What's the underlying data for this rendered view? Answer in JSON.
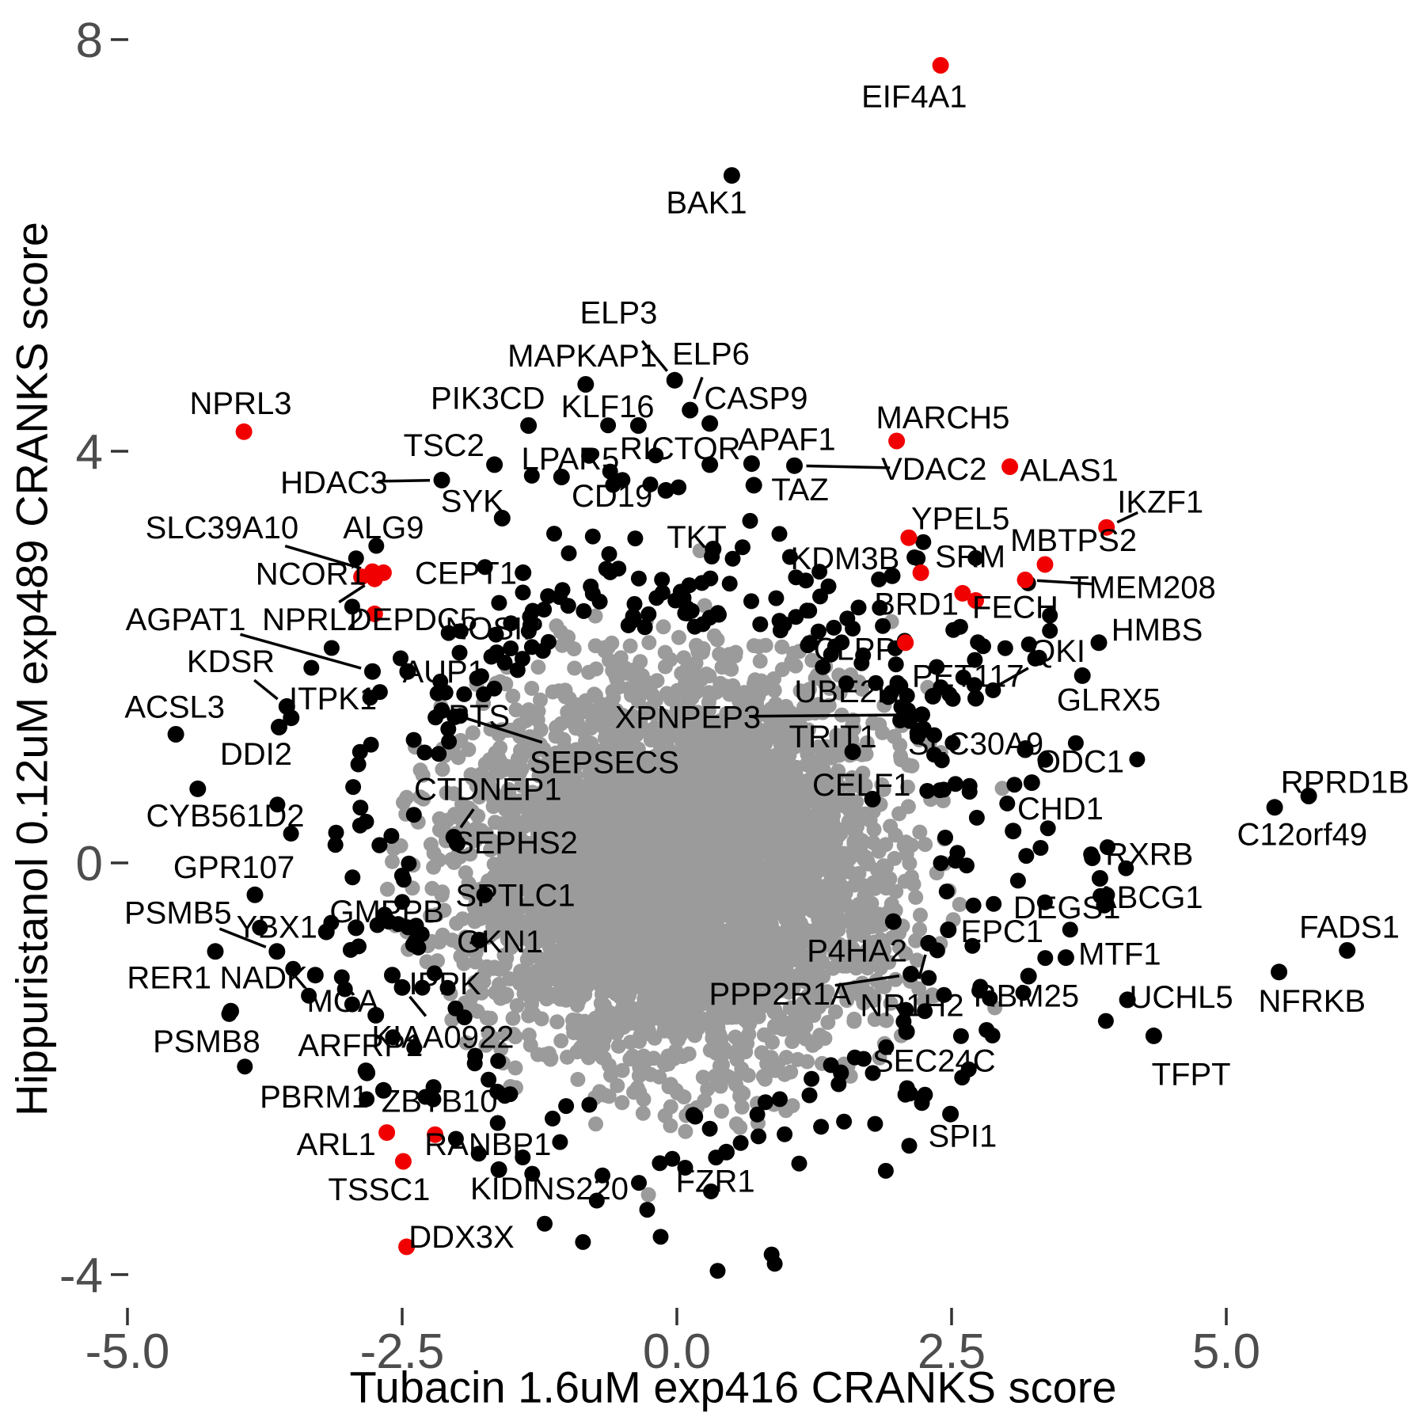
{
  "chart_data": {
    "type": "scatter",
    "title": "",
    "xlabel": "Tubacin 1.6uM exp416 CRANKS score",
    "ylabel": "Hippuristanol 0.12uM exp489 CRANKS score",
    "xlim": [
      -5.5,
      6.6
    ],
    "ylim": [
      -4.35,
      8.35
    ],
    "grid": false,
    "legend": "none",
    "x_ticks": [
      -5.0,
      -2.5,
      0.0,
      2.5,
      5.0
    ],
    "x_tick_labels": [
      "-5.0",
      "-2.5",
      "0.0",
      "2.5",
      "5.0"
    ],
    "y_ticks": [
      8,
      4,
      0,
      -4
    ],
    "y_tick_labels": [
      "8",
      "4",
      "0",
      "-4"
    ],
    "colors": {
      "highlight_point": "#F00000",
      "labeled_point": "#000000",
      "background_cloud": "#9B9B9B",
      "tick_text": "#4D4D4D",
      "label_text": "#000000"
    },
    "background_cloud": {
      "description": "dense unlabeled gray point cloud of all screened genes",
      "n": 4600,
      "cx": 0.0,
      "cy": -0.05,
      "sx": 0.92,
      "sy": 0.9,
      "clip": 2.9,
      "n_outlier": 150
    },
    "unlabeled_black": {
      "description": "unlabeled black points ringing the gray cloud",
      "n": 340,
      "cx": 0.0,
      "cy": 0.2,
      "spread_x": 1.43,
      "spread_y": 1.35,
      "inner": 2.6,
      "outer": 4.9
    },
    "labeled_points": [
      {
        "gene": "EIF4A1",
        "x": 2.4,
        "y": 7.75,
        "red": true,
        "lx": 2.16,
        "ly": 7.45
      },
      {
        "gene": "BAK1",
        "x": 0.5,
        "y": 6.68,
        "red": false,
        "lx": 0.27,
        "ly": 6.42
      },
      {
        "gene": "ELP3",
        "x": -0.02,
        "y": 4.69,
        "red": false,
        "lx": -0.53,
        "ly": 5.35
      },
      {
        "gene": "MAPKAP1",
        "x": -0.83,
        "y": 4.65,
        "red": false,
        "lx": -0.86,
        "ly": 4.93
      },
      {
        "gene": "ELP6",
        "x": 0.12,
        "y": 4.4,
        "red": false,
        "lx": 0.31,
        "ly": 4.95
      },
      {
        "gene": "CASP9",
        "x": 0.3,
        "y": 4.27,
        "red": false,
        "lx": 0.72,
        "ly": 4.52
      },
      {
        "gene": "PIK3CD",
        "x": -1.35,
        "y": 4.25,
        "red": false,
        "lx": -1.72,
        "ly": 4.52
      },
      {
        "gene": "KLF16",
        "x": -0.35,
        "y": 4.25,
        "red": false,
        "lx": -0.63,
        "ly": 4.44
      },
      {
        "gene": "NPRL3",
        "x": -3.94,
        "y": 4.19,
        "red": true,
        "lx": -3.97,
        "ly": 4.47
      },
      {
        "gene": "TSC2",
        "x": -1.66,
        "y": 3.87,
        "red": false,
        "lx": -2.12,
        "ly": 4.06
      },
      {
        "gene": "RICTOR",
        "x": 0.3,
        "y": 3.87,
        "red": false,
        "lx": 0.03,
        "ly": 4.03
      },
      {
        "gene": "LPAR5",
        "x": -1.05,
        "y": 3.75,
        "red": false,
        "lx": -0.97,
        "ly": 3.93
      },
      {
        "gene": "APAF1",
        "x": 0.68,
        "y": 3.88,
        "red": false,
        "lx": 1.0,
        "ly": 4.12
      },
      {
        "gene": "MARCH5",
        "x": 2.0,
        "y": 4.1,
        "red": true,
        "lx": 2.42,
        "ly": 4.33
      },
      {
        "gene": "VDAC2",
        "x": 1.07,
        "y": 3.86,
        "red": false,
        "lx": 2.34,
        "ly": 3.83
      },
      {
        "gene": "ALAS1",
        "x": 3.03,
        "y": 3.85,
        "red": true,
        "lx": 3.57,
        "ly": 3.82
      },
      {
        "gene": "HDAC3",
        "x": -2.14,
        "y": 3.72,
        "red": false,
        "lx": -3.12,
        "ly": 3.7
      },
      {
        "gene": "SYK",
        "x": -1.59,
        "y": 3.35,
        "red": false,
        "lx": -1.86,
        "ly": 3.52
      },
      {
        "gene": "CD19",
        "x": -0.1,
        "y": 3.62,
        "red": false,
        "lx": -0.59,
        "ly": 3.57
      },
      {
        "gene": "TAZ",
        "x": 0.7,
        "y": 3.67,
        "red": false,
        "lx": 1.12,
        "ly": 3.63
      },
      {
        "gene": "IKZF1",
        "x": 3.91,
        "y": 3.26,
        "red": true,
        "lx": 4.4,
        "ly": 3.51
      },
      {
        "gene": "YPEL5",
        "x": 2.11,
        "y": 3.16,
        "red": true,
        "lx": 2.58,
        "ly": 3.35
      },
      {
        "gene": "TKT",
        "x": 0.33,
        "y": 3.05,
        "red": false,
        "lx": 0.18,
        "ly": 3.17
      },
      {
        "gene": "MBTPS2",
        "x": 3.35,
        "y": 2.9,
        "red": true,
        "lx": 3.61,
        "ly": 3.14
      },
      {
        "gene": "KDM3B",
        "x": 1.96,
        "y": 2.79,
        "red": false,
        "lx": 1.53,
        "ly": 2.96
      },
      {
        "gene": "SRM",
        "x": 2.22,
        "y": 2.82,
        "red": true,
        "lx": 2.67,
        "ly": 2.98
      },
      {
        "gene": "TMEM208",
        "x": 3.17,
        "y": 2.75,
        "red": true,
        "lx": 4.24,
        "ly": 2.68
      },
      {
        "gene": "NCOR1",
        "x": -2.87,
        "y": 2.78,
        "red": true,
        "lx": -3.33,
        "ly": 2.81
      },
      {
        "gene": "ALG9",
        "x": -2.67,
        "y": 2.82,
        "red": true,
        "lx": -2.67,
        "ly": 3.26
      },
      {
        "gene": "SLC39A10",
        "x": -2.77,
        "y": 2.83,
        "red": true,
        "lx": -4.14,
        "ly": 3.26
      },
      {
        "gene": "CEPT1",
        "x": -1.4,
        "y": 2.82,
        "red": false,
        "lx": -1.92,
        "ly": 2.82
      },
      {
        "gene": "BRD1",
        "x": 2.6,
        "y": 2.62,
        "red": true,
        "lx": 2.18,
        "ly": 2.52
      },
      {
        "gene": "FECH",
        "x": 2.72,
        "y": 2.55,
        "red": true,
        "lx": 3.08,
        "ly": 2.49
      },
      {
        "gene": "AGPAT1",
        "x": -2.77,
        "y": 1.86,
        "red": false,
        "lx": -4.47,
        "ly": 2.37
      },
      {
        "gene": "NPRL2",
        "x": -2.75,
        "y": 2.76,
        "red": true,
        "lx": -3.31,
        "ly": 2.37
      },
      {
        "gene": "DEPDC5",
        "x": -2.75,
        "y": 2.42,
        "red": true,
        "lx": -2.4,
        "ly": 2.37
      },
      {
        "gene": "NOSIP",
        "x": -1.33,
        "y": 2.31,
        "red": false,
        "lx": -1.66,
        "ly": 2.28
      },
      {
        "gene": "HMBS",
        "x": 3.84,
        "y": 2.14,
        "red": false,
        "lx": 4.37,
        "ly": 2.27
      },
      {
        "gene": "CLPP",
        "x": 2.08,
        "y": 2.14,
        "red": true,
        "lx": 1.62,
        "ly": 2.08
      },
      {
        "gene": "QKI",
        "x": 2.72,
        "y": 1.6,
        "red": false,
        "lx": 3.47,
        "ly": 2.06
      },
      {
        "gene": "KDSR",
        "x": -3.55,
        "y": 1.52,
        "red": false,
        "lx": -4.06,
        "ly": 1.96
      },
      {
        "gene": "AUP1",
        "x": -2.45,
        "y": 1.86,
        "red": false,
        "lx": -2.12,
        "ly": 1.86
      },
      {
        "gene": "PET117",
        "x": 2.33,
        "y": 1.62,
        "red": false,
        "lx": 2.65,
        "ly": 1.82
      },
      {
        "gene": "UBE2H",
        "x": 2.03,
        "y": 1.72,
        "red": false,
        "lx": 1.55,
        "ly": 1.67
      },
      {
        "gene": "XPNPEP3",
        "x": 2.23,
        "y": 1.44,
        "red": false,
        "lx": 0.1,
        "ly": 1.42
      },
      {
        "gene": "GLRX5",
        "x": 3.69,
        "y": 1.82,
        "red": false,
        "lx": 3.93,
        "ly": 1.59
      },
      {
        "gene": "ACSL3",
        "x": -4.56,
        "y": 1.25,
        "red": false,
        "lx": -4.57,
        "ly": 1.52
      },
      {
        "gene": "ITPK1",
        "x": -3.51,
        "y": 1.41,
        "red": false,
        "lx": -3.13,
        "ly": 1.6
      },
      {
        "gene": "PTS",
        "x": -2.02,
        "y": 1.42,
        "red": false,
        "lx": -1.8,
        "ly": 1.43
      },
      {
        "gene": "SEPSECS",
        "x": -2.14,
        "y": 1.48,
        "red": false,
        "lx": -0.66,
        "ly": 0.98
      },
      {
        "gene": "TRIT1",
        "x": 1.6,
        "y": 1.08,
        "red": false,
        "lx": 1.42,
        "ly": 1.23
      },
      {
        "gene": "SLC30A9",
        "x": 3.17,
        "y": 1.1,
        "red": false,
        "lx": 2.72,
        "ly": 1.16
      },
      {
        "gene": "DDI2",
        "x": -3.62,
        "y": 1.32,
        "red": false,
        "lx": -3.83,
        "ly": 1.06
      },
      {
        "gene": "ODC1",
        "x": 3.23,
        "y": 0.78,
        "red": false,
        "lx": 3.67,
        "ly": 0.99
      },
      {
        "gene": "CELF1",
        "x": 1.78,
        "y": 0.62,
        "red": false,
        "lx": 1.68,
        "ly": 0.76
      },
      {
        "gene": "CYB561D2",
        "x": -4.36,
        "y": 0.72,
        "red": false,
        "lx": -4.11,
        "ly": 0.46
      },
      {
        "gene": "CTDNEP1",
        "x": -2.03,
        "y": 0.25,
        "red": false,
        "lx": -1.72,
        "ly": 0.72
      },
      {
        "gene": "CHD1",
        "x": 3.06,
        "y": 0.31,
        "red": false,
        "lx": 3.49,
        "ly": 0.53
      },
      {
        "gene": "RPRD1B",
        "x": 5.75,
        "y": 0.65,
        "red": false,
        "lx": 6.08,
        "ly": 0.79
      },
      {
        "gene": "C12orf49",
        "x": 5.44,
        "y": 0.54,
        "red": false,
        "lx": 5.69,
        "ly": 0.28
      },
      {
        "gene": "SEPHS2",
        "x": -2.0,
        "y": 0.19,
        "red": false,
        "lx": -1.47,
        "ly": 0.2
      },
      {
        "gene": "GPR107",
        "x": -3.84,
        "y": -0.31,
        "red": false,
        "lx": -4.03,
        "ly": -0.04
      },
      {
        "gene": "RXRB",
        "x": 3.78,
        "y": 0.05,
        "red": false,
        "lx": 4.3,
        "ly": 0.09
      },
      {
        "gene": "PSMB5",
        "x": -3.64,
        "y": -0.86,
        "red": false,
        "lx": -4.54,
        "ly": -0.48
      },
      {
        "gene": "YBX1",
        "x": -3.19,
        "y": -0.67,
        "red": false,
        "lx": -3.64,
        "ly": -0.62
      },
      {
        "gene": "GMPPB",
        "x": -2.92,
        "y": -0.63,
        "red": false,
        "lx": -2.64,
        "ly": -0.47
      },
      {
        "gene": "SPTLC1",
        "x": -1.75,
        "y": -0.31,
        "red": false,
        "lx": -1.47,
        "ly": -0.31
      },
      {
        "gene": "ABCG1",
        "x": 3.85,
        "y": -0.15,
        "red": false,
        "lx": 4.3,
        "ly": -0.33
      },
      {
        "gene": "DEGS1",
        "x": 3.89,
        "y": -0.41,
        "red": false,
        "lx": 3.55,
        "ly": -0.43
      },
      {
        "gene": "MTF1",
        "x": 3.54,
        "y": -0.92,
        "red": false,
        "lx": 4.03,
        "ly": -0.88
      },
      {
        "gene": "FADS1",
        "x": 6.1,
        "y": -0.85,
        "red": false,
        "lx": 6.12,
        "ly": -0.62
      },
      {
        "gene": "EPC1",
        "x": 2.47,
        "y": -0.65,
        "red": false,
        "lx": 2.96,
        "ly": -0.66
      },
      {
        "gene": "RER1",
        "x": -4.2,
        "y": -0.86,
        "red": false,
        "lx": -4.62,
        "ly": -1.11
      },
      {
        "gene": "NADK",
        "x": -3.29,
        "y": -1.09,
        "red": false,
        "lx": -3.76,
        "ly": -1.11
      },
      {
        "gene": "GKN1",
        "x": -1.8,
        "y": -0.75,
        "red": false,
        "lx": -1.61,
        "ly": -0.76
      },
      {
        "gene": "P4HA2",
        "x": 1.97,
        "y": -0.57,
        "red": false,
        "lx": 1.64,
        "ly": -0.85
      },
      {
        "gene": "MGA",
        "x": -2.74,
        "y": -1.48,
        "red": false,
        "lx": -3.04,
        "ly": -1.34
      },
      {
        "gene": "IPPK",
        "x": -2.59,
        "y": -1.09,
        "red": false,
        "lx": -2.11,
        "ly": -1.17
      },
      {
        "gene": "PPP2R1A",
        "x": 2.13,
        "y": -1.08,
        "red": false,
        "lx": 0.94,
        "ly": -1.27
      },
      {
        "gene": "NR1H2",
        "x": 2.29,
        "y": -0.78,
        "red": false,
        "lx": 2.14,
        "ly": -1.38
      },
      {
        "gene": "RBM25",
        "x": 3.2,
        "y": -1.1,
        "red": false,
        "lx": 3.18,
        "ly": -1.29
      },
      {
        "gene": "UCHL5",
        "x": 4.1,
        "y": -1.33,
        "red": false,
        "lx": 4.59,
        "ly": -1.3
      },
      {
        "gene": "NFRKB",
        "x": 5.48,
        "y": -1.06,
        "red": false,
        "lx": 5.78,
        "ly": -1.34
      },
      {
        "gene": "PSMB8",
        "x": -4.06,
        "y": -1.44,
        "red": false,
        "lx": -4.28,
        "ly": -1.73
      },
      {
        "gene": "KIAA0922",
        "x": -2.5,
        "y": -1.21,
        "red": false,
        "lx": -2.13,
        "ly": -1.69
      },
      {
        "gene": "ARFRP1",
        "x": -2.83,
        "y": -2.02,
        "red": false,
        "lx": -2.88,
        "ly": -1.77
      },
      {
        "gene": "SEC24C",
        "x": 2.09,
        "y": -1.64,
        "red": false,
        "lx": 2.34,
        "ly": -1.92
      },
      {
        "gene": "TFPT",
        "x": 4.34,
        "y": -1.68,
        "red": false,
        "lx": 4.68,
        "ly": -2.05
      },
      {
        "gene": "PBRM1",
        "x": -2.82,
        "y": -2.04,
        "red": false,
        "lx": -3.3,
        "ly": -2.27
      },
      {
        "gene": "ZBTB10",
        "x": -2.67,
        "y": -2.21,
        "red": false,
        "lx": -2.16,
        "ly": -2.31
      },
      {
        "gene": "SPI1",
        "x": 2.49,
        "y": -2.44,
        "red": false,
        "lx": 2.6,
        "ly": -2.65
      },
      {
        "gene": "ARL1",
        "x": -2.64,
        "y": -2.62,
        "red": true,
        "lx": -3.1,
        "ly": -2.73
      },
      {
        "gene": "RANBP1",
        "x": -2.2,
        "y": -2.64,
        "red": true,
        "lx": -1.72,
        "ly": -2.73
      },
      {
        "gene": "TSSC1",
        "x": -2.49,
        "y": -2.9,
        "red": true,
        "lx": -2.71,
        "ly": -3.17
      },
      {
        "gene": "KIDINS220",
        "x": -1.62,
        "y": -2.98,
        "red": false,
        "lx": -1.16,
        "ly": -3.16
      },
      {
        "gene": "FZR1",
        "x": 0.45,
        "y": -2.81,
        "red": false,
        "lx": 0.35,
        "ly": -3.09
      },
      {
        "gene": "DDX3X",
        "x": -2.46,
        "y": -3.73,
        "red": true,
        "lx": -1.96,
        "ly": -3.63
      }
    ]
  }
}
